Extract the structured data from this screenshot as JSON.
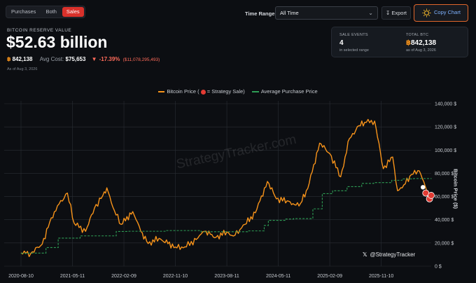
{
  "filters": {
    "options": [
      "Purchases",
      "Both",
      "Sales"
    ],
    "active": "Sales"
  },
  "time_range": {
    "label": "Time Range:",
    "value": "All Time"
  },
  "export_label": "Export",
  "copy_chart_label": "Copy Chart",
  "reserve": {
    "label": "BITCOIN RESERVE VALUE",
    "value": "$52.63 billion",
    "btc_amount": "842,138",
    "avg_cost_label": "Avg Cost:",
    "avg_cost": "$75,653",
    "change_pct": "-17.39%",
    "change_usd": "($11,078,295,493)",
    "as_of": "As of Aug 3, 2026"
  },
  "stats_panel": {
    "sale_events": {
      "label": "SALE EVENTS",
      "value": "4",
      "sub": "in selected range"
    },
    "total_btc": {
      "label": "TOTAL BTC",
      "value": "842,138",
      "sub": "as of Aug 3, 2026"
    }
  },
  "legend": {
    "price": "Bitcoin Price (",
    "price_suffix": "= Strategy Sale)",
    "avg": "Average Purchase Price"
  },
  "watermark": "StrategyTracker.com",
  "handle": "@StrategyTracker",
  "colors": {
    "accent_red": "#d9312b",
    "btc_orange": "#f7931a",
    "avg_green": "#2e9e55",
    "copy_border": "#e0662b"
  },
  "chart_data": {
    "type": "line",
    "ylabel": "Bitcoin Price ($)",
    "ylim": [
      0,
      140000
    ],
    "y_ticks": [
      "140,000 $",
      "120,000 $",
      "100,000 $",
      "80,000 $",
      "60,000 $",
      "40,000 $",
      "20,000 $",
      "0 $"
    ],
    "x_ticks": [
      "2020-08-10",
      "2021-05-11",
      "2022-02-09",
      "2022-11-10",
      "2023-08-11",
      "2024-05-11",
      "2025-02-09",
      "2025-11-10"
    ],
    "series": [
      {
        "name": "Bitcoin Price",
        "color": "#f7931a",
        "x": [
          "2020-08-10",
          "2020-10-01",
          "2020-12-01",
          "2021-01-10",
          "2021-02-20",
          "2021-04-14",
          "2021-05-20",
          "2021-07-20",
          "2021-09-05",
          "2021-10-20",
          "2021-11-10",
          "2021-12-20",
          "2022-01-25",
          "2022-03-28",
          "2022-05-10",
          "2022-06-18",
          "2022-08-15",
          "2022-11-10",
          "2022-12-30",
          "2023-03-01",
          "2023-04-14",
          "2023-06-15",
          "2023-08-11",
          "2023-09-15",
          "2023-11-15",
          "2024-01-10",
          "2024-03-14",
          "2024-05-01",
          "2024-07-05",
          "2024-08-05",
          "2024-09-06",
          "2024-10-15",
          "2024-12-17",
          "2025-02-09",
          "2025-04-08",
          "2025-05-25",
          "2025-07-14",
          "2025-08-14",
          "2025-10-06",
          "2025-11-21",
          "2026-01-10",
          "2026-02-05",
          "2026-03-10",
          "2026-04-20",
          "2026-06-01",
          "2026-07-10",
          "2026-08-03"
        ],
        "values": [
          11500,
          11000,
          19000,
          38000,
          52000,
          63000,
          37000,
          30000,
          50000,
          61000,
          67500,
          48000,
          36000,
          47000,
          30000,
          19500,
          24000,
          16500,
          16600,
          23000,
          30000,
          25000,
          29500,
          26000,
          36000,
          46000,
          73000,
          58000,
          56000,
          53000,
          54000,
          67000,
          106000,
          97000,
          77000,
          110000,
          121000,
          124000,
          125000,
          84000,
          94000,
          65000,
          70000,
          79000,
          82000,
          65000,
          61000
        ]
      },
      {
        "name": "Average Purchase Price",
        "color": "#2e9e55",
        "x": [
          "2020-08-10",
          "2020-09-15",
          "2020-12-21",
          "2021-02-24",
          "2021-06-21",
          "2021-12-30",
          "2022-03-01",
          "2022-09-20",
          "2023-03-27",
          "2023-11-30",
          "2024-02-26",
          "2024-03-19",
          "2024-06-20",
          "2024-08-01",
          "2024-11-11",
          "2024-12-31",
          "2025-02-24",
          "2025-05-12",
          "2025-07-29",
          "2025-10-01",
          "2026-01-05",
          "2026-03-01",
          "2026-05-01",
          "2026-08-03"
        ],
        "values": [
          11100,
          11300,
          16000,
          24200,
          26100,
          29900,
          30100,
          30700,
          29700,
          30400,
          35100,
          39500,
          40600,
          41000,
          49400,
          62500,
          65000,
          68500,
          71300,
          72000,
          74000,
          75200,
          75500,
          75653
        ]
      }
    ],
    "sales": [
      {
        "x": "2026-06-20",
        "y": 68000
      },
      {
        "x": "2026-07-05",
        "y": 63000
      },
      {
        "x": "2026-07-25",
        "y": 58000
      },
      {
        "x": "2026-08-03",
        "y": 61000
      }
    ]
  }
}
